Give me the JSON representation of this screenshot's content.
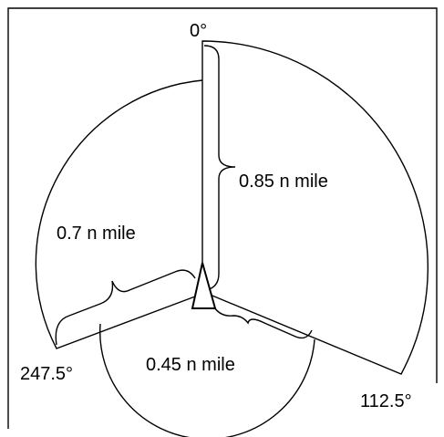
{
  "bearings": [
    "0°",
    "112.5°",
    "247.5°"
  ],
  "ranges": [
    "0.85 n mile",
    "0.7 n mile",
    "0.45 n mile"
  ]
}
